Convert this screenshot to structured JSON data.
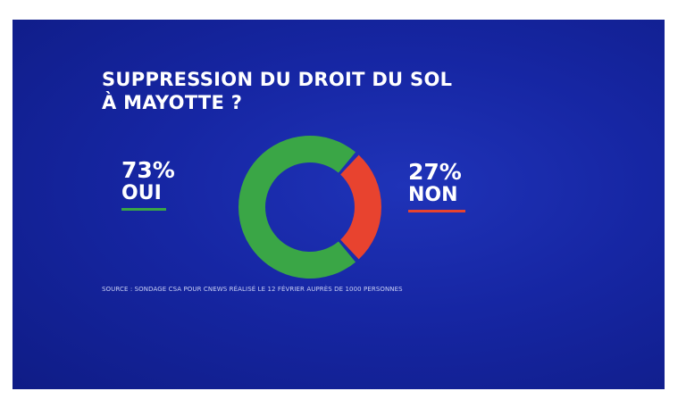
{
  "title_line1": "SUPPRESSION DU DROIT DU SOL",
  "title_line2": "À MAYOTTE ?",
  "yes": {
    "pct": "73%",
    "label": "OUI",
    "color": "#3aa646"
  },
  "no": {
    "pct": "27%",
    "label": "NON",
    "color": "#e8432f"
  },
  "source": "SOURCE : SONDAGE CSA POUR CNEWS RÉALISÉ LE 12 FÉVRIER AUPRÈS DE 1000 PERSONNES",
  "chart_data": {
    "type": "pie",
    "title": "SUPPRESSION DU DROIT DU SOL À MAYOTTE ?",
    "categories": [
      "OUI",
      "NON"
    ],
    "values": [
      73,
      27
    ],
    "colors": [
      "#3aa646",
      "#e8432f"
    ],
    "style": "donut"
  }
}
